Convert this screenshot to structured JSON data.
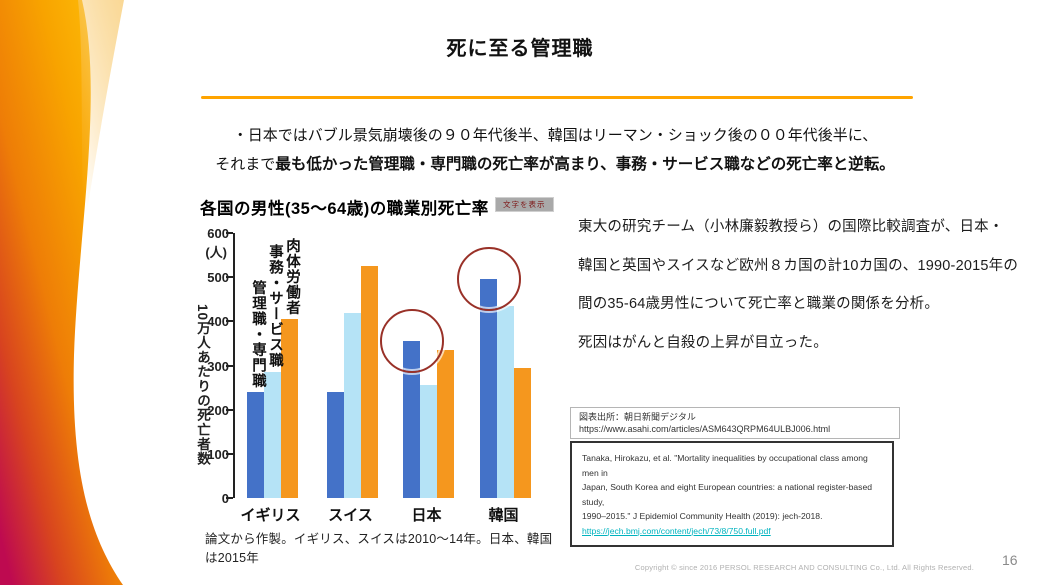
{
  "slide": {
    "title": "死に至る管理職",
    "bullet_line1": "・日本ではバブル景気崩壊後の９０年代後半、韓国はリーマン・ショック後の００年代後半に、",
    "bullet_line2_prefix": "それまで",
    "bullet_line2_bold": "最も低かった管理職・専門職の死亡率が高まり、事務・サービス職などの死亡率と逆転。",
    "accent_line_color": "#FFA400",
    "page_number": "16",
    "copyright": "Copyright © since 2016  PERSOL  RESEARCH AND CONSULTING Co., Ltd. All Rights Reserved."
  },
  "right_panel": {
    "line1": "東大の研究チーム（小林廉毅教授ら）の国際比較調査が、日本・",
    "line2": "韓国と英国やスイスなど欧州８カ国の計10カ国の、1990-2015年の",
    "line3": "間の35-64歳男性について死亡率と職業の関係を分析。",
    "line4": "死因はがんと自殺の上昇が目立った。"
  },
  "sources": {
    "chart_source_label": "図表出所：朝日新聞デジタル",
    "chart_source_url": "https://www.asahi.com/articles/ASM643QRPM64ULBJ006.html",
    "citation_line1": "Tanaka, Hirokazu, et al. \"Mortality inequalities by occupational class among men in",
    "citation_line2": "Japan, South Korea and eight European countries: a national register-based study,",
    "citation_line3": "1990–2015.\" J Epidemiol Community Health (2019): jech-2018.",
    "citation_link": "https://jech.bmj.com/content/jech/73/8/750.full.pdf",
    "citation_link_color": "#00b3bf"
  },
  "chart_data": {
    "type": "bar",
    "title": "各国の男性(35～64歳)の職業別死亡率",
    "badge": "文字を表示",
    "ylabel": "10万人あたりの死亡者数",
    "y_unit": "(人)",
    "ylim": [
      0,
      600
    ],
    "yticks": [
      0,
      100,
      200,
      300,
      400,
      500,
      600
    ],
    "grid": false,
    "legend_position": "vertical-labels-above-first-group",
    "categories": [
      "イギリス",
      "スイス",
      "日本",
      "韓国"
    ],
    "series": [
      {
        "name": "管理職・専門職",
        "color": "#4472c8",
        "values": [
          240,
          240,
          355,
          495
        ]
      },
      {
        "name": "事務・サービス職",
        "color": "#b5e3f6",
        "values": [
          285,
          420,
          255,
          435
        ]
      },
      {
        "name": "肉体労働者",
        "color": "#f5971e",
        "values": [
          405,
          525,
          335,
          295
        ]
      }
    ],
    "highlight_circles": [
      {
        "category": "日本",
        "series": "管理職・専門職",
        "color": "#993128"
      },
      {
        "category": "韓国",
        "series": "管理職・専門職",
        "color": "#993128"
      }
    ],
    "note": "論文から作製。イギリス、スイスは2010～14年。日本、韓国は2015年"
  }
}
